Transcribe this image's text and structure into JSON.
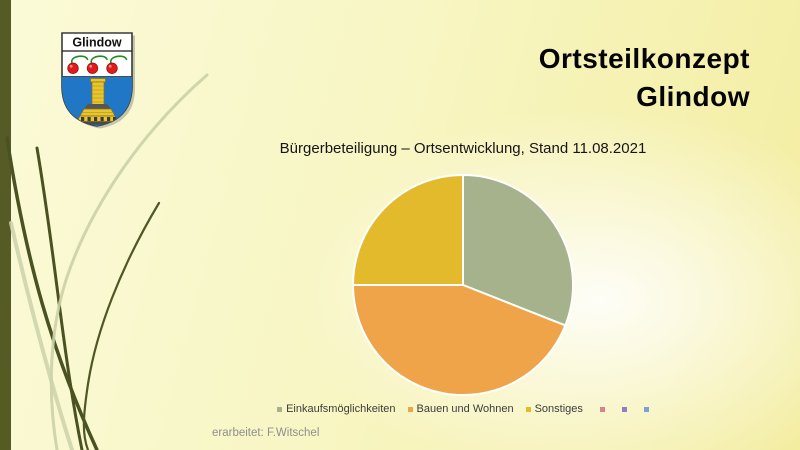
{
  "slide": {
    "title_line1": "Ortsteilkonzept",
    "title_line2": "Glindow",
    "footer": "erarbeitet: F.Witschel"
  },
  "crest": {
    "banner_label": "Glindow"
  },
  "chart_data": {
    "type": "pie",
    "title": "Bürgerbeteiligung – Ortsentwicklung, Stand 11.08.2021",
    "values_are_percent_estimates": true,
    "slices": [
      {
        "label": "Einkaufsmöglichkeiten",
        "value": 31,
        "color": "#a6b28c"
      },
      {
        "label": "Bauen und Wohnen",
        "value": 44,
        "color": "#f0a44a"
      },
      {
        "label": "Sonstiges",
        "value": 25,
        "color": "#e3ba2b"
      }
    ],
    "extra_legend_markers": [
      {
        "label": "",
        "color": "#d4848e"
      },
      {
        "label": "",
        "color": "#8d7fc4"
      },
      {
        "label": "",
        "color": "#7ea1d4"
      }
    ],
    "legend_position": "bottom",
    "start_angle_deg": 0,
    "direction": "clockwise",
    "slice_border_color": "#ffffff"
  },
  "decor": {
    "left_bar_color": "#565b26",
    "grass_dark": "#4b5222",
    "grass_mid": "#4f5724",
    "grass_light": "#cbd0a6",
    "grass_light2": "#cdd2aa"
  }
}
